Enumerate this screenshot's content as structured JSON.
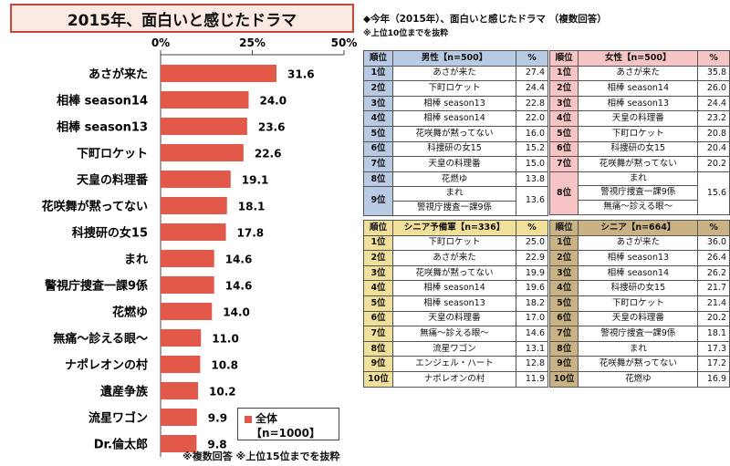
{
  "chart_title": "2015年、面白いと感じたドラマ",
  "footnote": "※複数回答 ※上位15位までを抜粋",
  "legend": {
    "series": "全体",
    "n": "【n=1000】"
  },
  "colors": {
    "bar": "#e2594a",
    "male": "#b9cbe4",
    "female": "#f6c4c4",
    "senior_pre": "#f1df9c",
    "senior": "#c9b384"
  },
  "chart_data": {
    "type": "bar",
    "orientation": "horizontal",
    "categories": [
      "あさが来た",
      "相棒 season14",
      "相棒 season13",
      "下町ロケット",
      "天皇の料理番",
      "花咲舞が黙ってない",
      "科捜研の女15",
      "まれ",
      "警視庁捜査一課9係",
      "花燃ゆ",
      "無痛～診える眼～",
      "ナポレオンの村",
      "遺産争族",
      "流星ワゴン",
      "Dr.倫太郎"
    ],
    "series": [
      {
        "name": "全体",
        "values": [
          31.6,
          24.0,
          23.6,
          22.6,
          19.1,
          18.1,
          17.8,
          14.6,
          14.6,
          14.0,
          11.0,
          10.8,
          10.2,
          9.9,
          9.8
        ]
      }
    ],
    "xticks": [
      "0%",
      "25%",
      "50%"
    ],
    "xlim": [
      0,
      50
    ],
    "grid": false
  },
  "right_title": "◆今年（2015年）、面白いと感じたドラマ （複数回答）",
  "right_subtitle": "※上位10位までを抜粋",
  "tables": {
    "male": {
      "h_rank": "順位",
      "h_name": "男性【n=500】",
      "h_pct": "%",
      "rows": [
        {
          "rank": "1位",
          "name": "あさが来た",
          "pct": "27.4"
        },
        {
          "rank": "2位",
          "name": "下町ロケット",
          "pct": "24.4"
        },
        {
          "rank": "3位",
          "name": "相棒 season13",
          "pct": "22.8"
        },
        {
          "rank": "4位",
          "name": "相棒 season14",
          "pct": "22.0"
        },
        {
          "rank": "5位",
          "name": "花咲舞が黙ってない",
          "pct": "16.0"
        },
        {
          "rank": "6位",
          "name": "科捜研の女15",
          "pct": "15.2"
        },
        {
          "rank": "7位",
          "name": "天皇の料理番",
          "pct": "15.0"
        },
        {
          "rank": "8位",
          "name": "花燃ゆ",
          "pct": "13.8"
        }
      ],
      "tie": {
        "rank": "9位",
        "names": [
          "まれ",
          "警視庁捜査一課9係"
        ],
        "pct": "13.6"
      }
    },
    "female": {
      "h_rank": "順位",
      "h_name": "女性【n=500】",
      "h_pct": "%",
      "rows": [
        {
          "rank": "1位",
          "name": "あさが来た",
          "pct": "35.8"
        },
        {
          "rank": "2位",
          "name": "相棒 season14",
          "pct": "26.0"
        },
        {
          "rank": "3位",
          "name": "相棒 season13",
          "pct": "24.4"
        },
        {
          "rank": "4位",
          "name": "天皇の料理番",
          "pct": "23.2"
        },
        {
          "rank": "5位",
          "name": "下町ロケット",
          "pct": "20.8"
        },
        {
          "rank": "6位",
          "name": "科捜研の女15",
          "pct": "20.4"
        },
        {
          "rank": "7位",
          "name": "花咲舞が黙ってない",
          "pct": "20.2"
        }
      ],
      "tie": {
        "rank": "8位",
        "names": [
          "まれ",
          "警視庁捜査一課9係",
          "無痛～診える眼～"
        ],
        "pct": "15.6"
      }
    },
    "senior_pre": {
      "h_rank": "順位",
      "h_name": "シニア予備軍【n=336】",
      "h_pct": "%",
      "rows": [
        {
          "rank": "1位",
          "name": "下町ロケット",
          "pct": "25.0"
        },
        {
          "rank": "2位",
          "name": "あさが来た",
          "pct": "22.9"
        },
        {
          "rank": "3位",
          "name": "花咲舞が黙ってない",
          "pct": "19.9"
        },
        {
          "rank": "4位",
          "name": "相棒 season14",
          "pct": "19.6"
        },
        {
          "rank": "5位",
          "name": "相棒 season13",
          "pct": "18.2"
        },
        {
          "rank": "6位",
          "name": "天皇の料理番",
          "pct": "17.0"
        },
        {
          "rank": "7位",
          "name": "無痛～診える眼～",
          "pct": "14.6"
        },
        {
          "rank": "8位",
          "name": "流星ワゴン",
          "pct": "13.1"
        },
        {
          "rank": "9位",
          "name": "エンジェル・ハート",
          "pct": "12.8"
        },
        {
          "rank": "10位",
          "name": "ナポレオンの村",
          "pct": "11.9"
        }
      ]
    },
    "senior": {
      "h_rank": "順位",
      "h_name": "シニア【n=664】",
      "h_pct": "%",
      "rows": [
        {
          "rank": "1位",
          "name": "あさが来た",
          "pct": "36.0"
        },
        {
          "rank": "2位",
          "name": "相棒 season13",
          "pct": "26.4"
        },
        {
          "rank": "3位",
          "name": "相棒 season14",
          "pct": "26.2"
        },
        {
          "rank": "4位",
          "name": "科捜研の女15",
          "pct": "21.7"
        },
        {
          "rank": "5位",
          "name": "下町ロケット",
          "pct": "21.4"
        },
        {
          "rank": "6位",
          "name": "天皇の料理番",
          "pct": "20.2"
        },
        {
          "rank": "7位",
          "name": "警視庁捜査一課9係",
          "pct": "18.1"
        },
        {
          "rank": "8位",
          "name": "まれ",
          "pct": "17.3"
        },
        {
          "rank": "9位",
          "name": "花咲舞が黙ってない",
          "pct": "17.2"
        },
        {
          "rank": "10位",
          "name": "花燃ゆ",
          "pct": "16.9"
        }
      ]
    }
  }
}
